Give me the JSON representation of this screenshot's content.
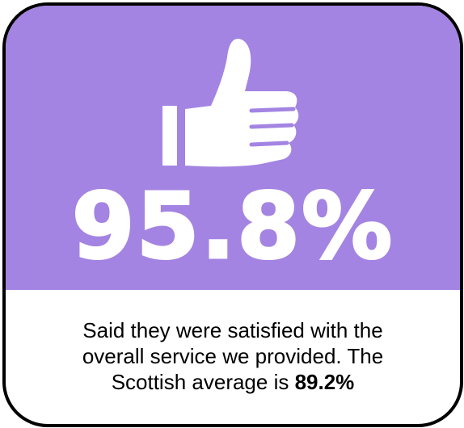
{
  "stat": {
    "value": "95.8%",
    "icon": "thumbs-up-icon"
  },
  "caption": {
    "line1": "Said they were satisfied with the",
    "line2": "overall service we provided. The",
    "line3_prefix": "Scottish average is ",
    "line3_value": "89.2%"
  },
  "colors": {
    "panel": "#a384e2",
    "text_light": "#ffffff",
    "border": "#000000"
  }
}
